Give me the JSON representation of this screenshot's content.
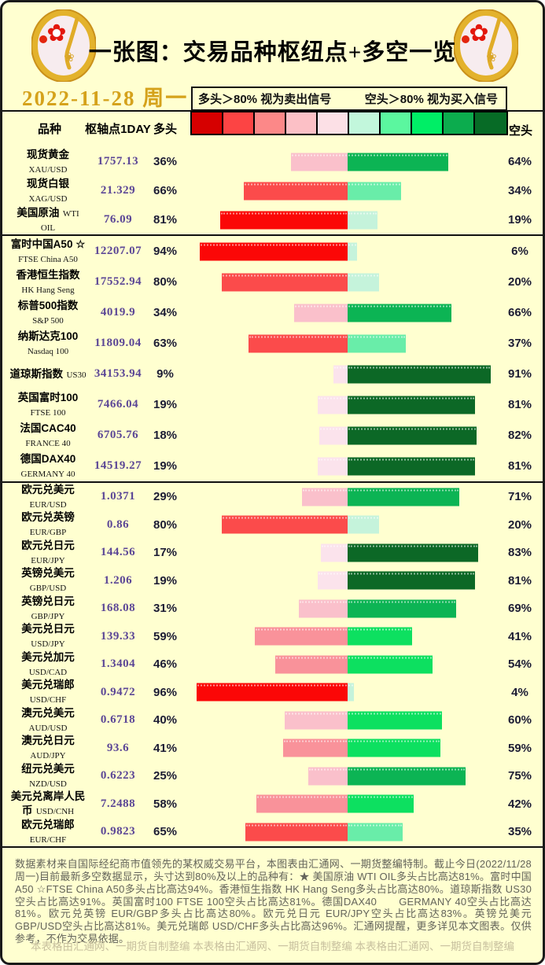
{
  "meta": {
    "title": "一张图：交易品种枢纽点+多空一览",
    "date": "2022-11-28 周一"
  },
  "legend": {
    "long_note": "多头＞80% 视为卖出信号",
    "short_note": "空头＞80% 视为买入信号",
    "palette": [
      "#D60000",
      "#FC4444",
      "#FC8888",
      "#FCC0C6",
      "#FCE0E6",
      "#C2F7DC",
      "#5BF79F",
      "#00EE66",
      "#0CAC4E",
      "#076B26"
    ]
  },
  "columns": {
    "instrument": "品种",
    "pivot": "枢轴点1DAY",
    "long": "多头",
    "short": "空头"
  },
  "chart_data": {
    "type": "bar",
    "subtype": "diverging-stacked-horizontal",
    "unit": "%",
    "title": "交易品种枢纽点+多空一览",
    "note": "long% drawn left of center in red shades, short% drawn right of center in green shades; deeper color = higher percentage",
    "xlim_each_side": [
      0,
      100
    ],
    "groups": [
      {
        "name": "commodities",
        "rows": [
          {
            "cn": "现货黄金",
            "en": "XAU/USD",
            "pivot": "1757.13",
            "long": 36,
            "short": 64,
            "long_color": "#FAC0CB",
            "short_color": "#0CB454"
          },
          {
            "cn": "现货白银",
            "en": "XAG/USD",
            "pivot": "21.329",
            "long": 66,
            "short": 34,
            "long_color": "#FB4B4B",
            "short_color": "#69EDA9"
          },
          {
            "cn": "美国原油",
            "en": "WTI OIL",
            "pivot": "76.09",
            "long": 81,
            "short": 19,
            "long_color": "#FB0707",
            "short_color": "#C5F3DB"
          }
        ]
      },
      {
        "name": "indices",
        "rows": [
          {
            "cn": "富时中国A50 ☆",
            "en": "FTSE China A50",
            "pivot": "12207.07",
            "long": 94,
            "short": 6,
            "long_color": "#FB0707",
            "short_color": "#C5F3DB"
          },
          {
            "cn": "香港恒生指数",
            "en": "HK Hang Seng",
            "pivot": "17552.94",
            "long": 80,
            "short": 20,
            "long_color": "#FB4B4B",
            "short_color": "#C5F3DB"
          },
          {
            "cn": "标普500指数",
            "en": "S&P 500",
            "pivot": "4019.9",
            "long": 34,
            "short": 66,
            "long_color": "#FAC0CB",
            "short_color": "#0CB454"
          },
          {
            "cn": "纳斯达克100",
            "en": "Nasdaq 100",
            "pivot": "11809.04",
            "long": 63,
            "short": 37,
            "long_color": "#FB4B4B",
            "short_color": "#69EDA9"
          },
          {
            "cn": "道琼斯指数",
            "en": "US30",
            "pivot": "34153.94",
            "long": 9,
            "short": 91,
            "long_color": "#FBE3EC",
            "short_color": "#0C6826"
          },
          {
            "cn": "英国富时100",
            "en": "FTSE 100",
            "pivot": "7466.04",
            "long": 19,
            "short": 81,
            "long_color": "#FBE3EC",
            "short_color": "#0C6826"
          },
          {
            "cn": "法国CAC40",
            "en": "FRANCE 40",
            "pivot": "6705.76",
            "long": 18,
            "short": 82,
            "long_color": "#FBE3EC",
            "short_color": "#0C6826"
          },
          {
            "cn": "德国DAX40",
            "en": "GERMANY 40",
            "pivot": "14519.27",
            "long": 19,
            "short": 81,
            "long_color": "#FBE3EC",
            "short_color": "#0C6826"
          }
        ]
      },
      {
        "name": "forex",
        "rows": [
          {
            "cn": "欧元兑美元",
            "en": "EUR/USD",
            "pivot": "1.0371",
            "long": 29,
            "short": 71,
            "long_color": "#FAC0CB",
            "short_color": "#0CB454"
          },
          {
            "cn": "欧元兑英镑",
            "en": "EUR/GBP",
            "pivot": "0.86",
            "long": 80,
            "short": 20,
            "long_color": "#FB4B4B",
            "short_color": "#C5F3DB"
          },
          {
            "cn": "欧元兑日元",
            "en": "EUR/JPY",
            "pivot": "144.56",
            "long": 17,
            "short": 83,
            "long_color": "#FBE3EC",
            "short_color": "#0C6826"
          },
          {
            "cn": "英镑兑美元",
            "en": "GBP/USD",
            "pivot": "1.206",
            "long": 19,
            "short": 81,
            "long_color": "#FBE3EC",
            "short_color": "#0C6826"
          },
          {
            "cn": "英镑兑日元",
            "en": "GBP/JPY",
            "pivot": "168.08",
            "long": 31,
            "short": 69,
            "long_color": "#FAC0CB",
            "short_color": "#0CB454"
          },
          {
            "cn": "美元兑日元",
            "en": "USD/JPY",
            "pivot": "139.33",
            "long": 59,
            "short": 41,
            "long_color": "#F9929A",
            "short_color": "#0DE060"
          },
          {
            "cn": "美元兑加元",
            "en": "USD/CAD",
            "pivot": "1.3404",
            "long": 46,
            "short": 54,
            "long_color": "#F9929A",
            "short_color": "#0DE060"
          },
          {
            "cn": "美元兑瑞郎",
            "en": "USD/CHF",
            "pivot": "0.9472",
            "long": 96,
            "short": 4,
            "long_color": "#FB0707",
            "short_color": "#C5F3DB"
          },
          {
            "cn": "澳元兑美元",
            "en": "AUD/USD",
            "pivot": "0.6718",
            "long": 40,
            "short": 60,
            "long_color": "#FAC0CB",
            "short_color": "#0DE060"
          },
          {
            "cn": "澳元兑日元",
            "en": "AUD/JPY",
            "pivot": "93.6",
            "long": 41,
            "short": 59,
            "long_color": "#F9929A",
            "short_color": "#0DE060"
          },
          {
            "cn": "纽元兑美元",
            "en": "NZD/USD",
            "pivot": "0.6223",
            "long": 25,
            "short": 75,
            "long_color": "#FAC0CB",
            "short_color": "#0CB454"
          },
          {
            "cn": "美元兑离岸人民币",
            "en": "USD/CNH",
            "pivot": "7.2488",
            "long": 58,
            "short": 42,
            "long_color": "#F9929A",
            "short_color": "#0DE060"
          },
          {
            "cn": "欧元兑瑞郎",
            "en": "EUR/CHF",
            "pivot": "0.9823",
            "long": 65,
            "short": 35,
            "long_color": "#FB4B4B",
            "short_color": "#69EDA9"
          }
        ]
      }
    ]
  },
  "footer": {
    "text": "数据素材来自国际经纪商市值领先的某权威交易平台，本图表由汇通网、一期货整编特制。截止今日(2022/11/28周一)目前最新多空数据显示，头寸达到80%及以上的品种有：★ 美国原油 WTI OIL多头占比高达81%。富时中国A50 ☆FTSE China A50多头占比高达94%。香港恒生指数 HK Hang Seng多头占比高达80%。道琼斯指数 US30空头占比高达91%。英国富时100 FTSE 100空头占比高达81%。德国DAX40　　GERMANY 40空头占比高达81%。欧元兑英镑 EUR/GBP多头占比高达80%。欧元兑日元 EUR/JPY空头占比高达83%。英镑兑美元 GBP/USD空头占比高达81%。美元兑瑞郎 USD/CHF多头占比高达96%。汇通网提醒，更多详见本文图表。仅供参考，不作为交易依据。",
    "watermark": "本表格由汇通网、一期货自制整编"
  }
}
